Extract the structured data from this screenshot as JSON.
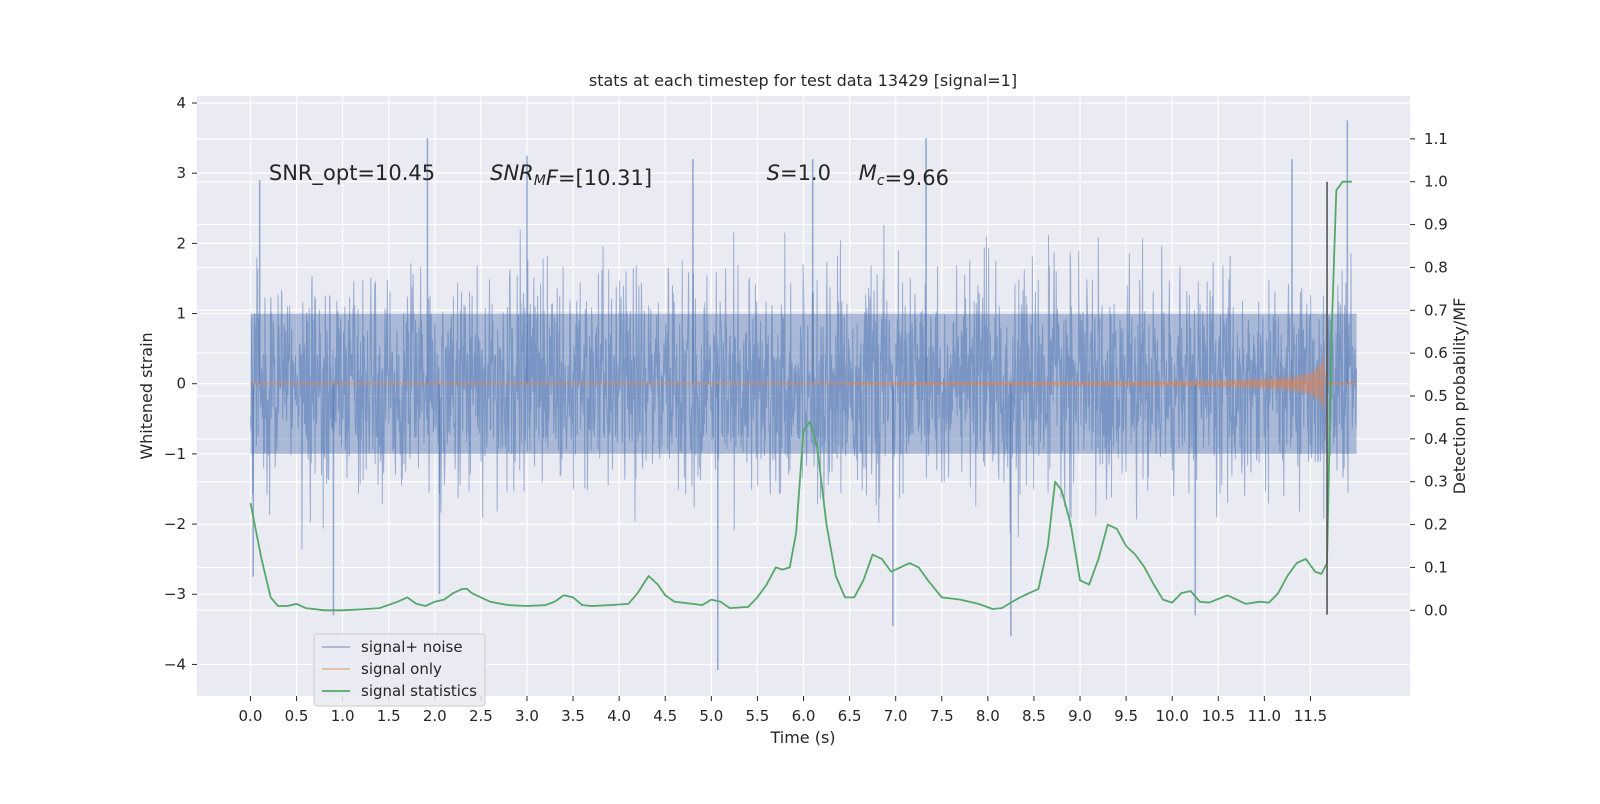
{
  "chart_data": {
    "type": "line",
    "title": "stats at each timestep for test data 13429 [signal=1]",
    "xlabel": "Time (s)",
    "ylabel_left": "Whitened strain",
    "ylabel_right": "Detection probability/MF",
    "xlim": [
      -0.58,
      12.58
    ],
    "ylim_left": [
      -4.45,
      4.1
    ],
    "ylim_right": [
      -0.2,
      1.2
    ],
    "x_ticks": [
      0.0,
      0.5,
      1.0,
      1.5,
      2.0,
      2.5,
      3.0,
      3.5,
      4.0,
      4.5,
      5.0,
      5.5,
      6.0,
      6.5,
      7.0,
      7.5,
      8.0,
      8.5,
      9.0,
      9.5,
      10.0,
      10.5,
      11.0,
      11.5
    ],
    "x_tick_labels": [
      "0.0",
      "0.5",
      "1.0",
      "1.5",
      "2.0",
      "2.5",
      "3.0",
      "3.5",
      "4.0",
      "4.5",
      "5.0",
      "5.5",
      "6.0",
      "6.5",
      "7.0",
      "7.5",
      "8.0",
      "8.5",
      "9.0",
      "9.5",
      "10.0",
      "10.5",
      "11.0",
      "11.5"
    ],
    "y_left_ticks": [
      -4,
      -3,
      -2,
      -1,
      0,
      1,
      2,
      3,
      4
    ],
    "y_left_tick_labels": [
      "−4",
      "−3",
      "−2",
      "−1",
      "0",
      "1",
      "2",
      "3",
      "4"
    ],
    "y_right_ticks": [
      0.0,
      0.1,
      0.2,
      0.3,
      0.4,
      0.5,
      0.6,
      0.7,
      0.8,
      0.9,
      1.0,
      1.1
    ],
    "y_right_tick_labels": [
      "0.0",
      "0.1",
      "0.2",
      "0.3",
      "0.4",
      "0.5",
      "0.6",
      "0.7",
      "0.8",
      "0.9",
      "1.0",
      "1.1"
    ],
    "grid": true,
    "legend_position": "lower-left",
    "annotations": [
      {
        "id": "snr-opt",
        "text": "SNR_opt=10.45",
        "x": 0.2,
        "y": 3.0
      },
      {
        "id": "snr-mf",
        "text": "=[10.31]",
        "math": "SNR",
        "sub": "M",
        "math2": "F",
        "x": 2.6,
        "y": 3.0
      },
      {
        "id": "s-stat",
        "text": "=1.0",
        "math": "S",
        "x": 5.6,
        "y": 3.0
      },
      {
        "id": "mc",
        "text": "=9.66",
        "math": "M",
        "sub": "c",
        "x": 6.6,
        "y": 3.0
      }
    ],
    "vertical_line": {
      "x": 11.68,
      "y_right_range": [
        -0.01,
        1.0
      ]
    },
    "series": [
      {
        "name": "signal+ noise",
        "color": "#4c72b0",
        "axis": "left",
        "x_range": [
          0.0,
          12.0
        ],
        "envelope_low": -2.5,
        "envelope_high": 2.3,
        "core": 1.0,
        "extremes": [
          {
            "x": 0.03,
            "y": -2.75
          },
          {
            "x": 0.1,
            "y": 2.9
          },
          {
            "x": 0.9,
            "y": -3.3
          },
          {
            "x": 1.92,
            "y": 3.5
          },
          {
            "x": 2.05,
            "y": -3.0
          },
          {
            "x": 3.0,
            "y": 3.25
          },
          {
            "x": 4.8,
            "y": 3.2
          },
          {
            "x": 5.07,
            "y": -4.08
          },
          {
            "x": 6.1,
            "y": 3.2
          },
          {
            "x": 6.97,
            "y": -3.45
          },
          {
            "x": 7.33,
            "y": 3.5
          },
          {
            "x": 8.25,
            "y": -3.6
          },
          {
            "x": 10.25,
            "y": -3.3
          },
          {
            "x": 11.3,
            "y": 3.2
          },
          {
            "x": 11.9,
            "y": 3.75
          }
        ]
      },
      {
        "name": "signal only",
        "color": "#dd8452",
        "axis": "left",
        "chirp": {
          "t_start": 6.5,
          "t_merge": 11.65,
          "t_end": 12.0,
          "peak_amplitude": 0.75
        }
      },
      {
        "name": "signal statistics",
        "color": "#55a868",
        "axis": "right",
        "x": [
          0.0,
          0.12,
          0.22,
          0.3,
          0.4,
          0.5,
          0.6,
          0.8,
          1.0,
          1.2,
          1.4,
          1.6,
          1.7,
          1.8,
          1.9,
          2.0,
          2.1,
          2.2,
          2.3,
          2.35,
          2.4,
          2.5,
          2.6,
          2.8,
          3.0,
          3.2,
          3.3,
          3.4,
          3.5,
          3.6,
          3.7,
          3.9,
          4.1,
          4.2,
          4.32,
          4.42,
          4.5,
          4.6,
          4.8,
          4.9,
          5.0,
          5.1,
          5.2,
          5.4,
          5.5,
          5.6,
          5.7,
          5.77,
          5.85,
          5.92,
          6.0,
          6.07,
          6.15,
          6.25,
          6.35,
          6.45,
          6.55,
          6.65,
          6.75,
          6.85,
          6.95,
          7.05,
          7.15,
          7.25,
          7.35,
          7.5,
          7.7,
          7.9,
          8.05,
          8.15,
          8.25,
          8.35,
          8.45,
          8.55,
          8.65,
          8.73,
          8.8,
          8.9,
          9.0,
          9.1,
          9.2,
          9.3,
          9.4,
          9.5,
          9.6,
          9.7,
          9.8,
          9.9,
          10.0,
          10.1,
          10.2,
          10.3,
          10.4,
          10.6,
          10.8,
          10.95,
          11.05,
          11.15,
          11.25,
          11.35,
          11.45,
          11.55,
          11.62,
          11.68,
          11.73,
          11.78,
          11.85,
          11.95
        ],
        "values": [
          0.25,
          0.12,
          0.03,
          0.01,
          0.01,
          0.015,
          0.005,
          0.0,
          0.0,
          0.002,
          0.005,
          0.02,
          0.03,
          0.015,
          0.01,
          0.02,
          0.025,
          0.04,
          0.05,
          0.05,
          0.04,
          0.03,
          0.02,
          0.012,
          0.01,
          0.012,
          0.02,
          0.035,
          0.03,
          0.012,
          0.01,
          0.012,
          0.015,
          0.04,
          0.08,
          0.06,
          0.035,
          0.02,
          0.015,
          0.012,
          0.025,
          0.02,
          0.005,
          0.008,
          0.03,
          0.06,
          0.1,
          0.095,
          0.1,
          0.18,
          0.42,
          0.44,
          0.38,
          0.2,
          0.08,
          0.03,
          0.03,
          0.07,
          0.13,
          0.12,
          0.09,
          0.1,
          0.11,
          0.1,
          0.07,
          0.03,
          0.025,
          0.015,
          0.003,
          0.005,
          0.018,
          0.03,
          0.04,
          0.05,
          0.15,
          0.3,
          0.28,
          0.2,
          0.07,
          0.06,
          0.12,
          0.2,
          0.19,
          0.15,
          0.13,
          0.1,
          0.06,
          0.025,
          0.018,
          0.04,
          0.045,
          0.02,
          0.018,
          0.035,
          0.015,
          0.02,
          0.018,
          0.04,
          0.08,
          0.11,
          0.12,
          0.09,
          0.085,
          0.11,
          0.65,
          0.98,
          1.0,
          1.0
        ]
      }
    ]
  }
}
